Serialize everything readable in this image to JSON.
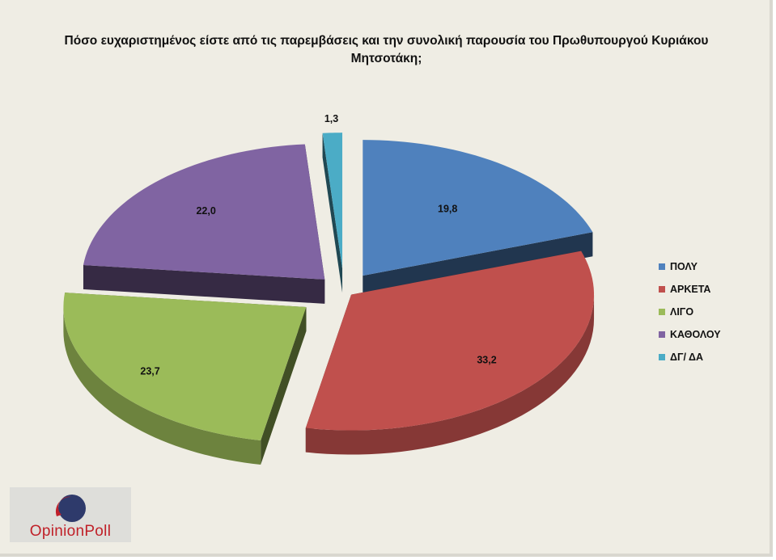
{
  "chart_data": {
    "type": "pie",
    "title_lines": [
      "Πόσο ευχαριστημένος είστε από τις παρεμβάσεις και την συνολική παρουσία του Πρωθυπουργού Κυριάκου",
      "Μητσοτάκη;"
    ],
    "categories": [
      "ΠΟΛΥ",
      "ΑΡΚΕΤΑ",
      "ΛΙΓΟ",
      "ΚΑΘΟΛΟΥ",
      "ΔΓ/ ΔΑ"
    ],
    "values": [
      19.8,
      33.2,
      23.7,
      22.0,
      1.3
    ],
    "value_labels": [
      "19,8",
      "33,2",
      "23,7",
      "22,0",
      "1,3"
    ],
    "colors": [
      "#4f81bd",
      "#c0504d",
      "#9bbb59",
      "#8064a2",
      "#4bacc6"
    ],
    "style": "3d-exploded",
    "legend_position": "right"
  },
  "logo": {
    "text": "OpinionPoll",
    "colors": [
      "#c0202a",
      "#2e3a6b"
    ]
  }
}
